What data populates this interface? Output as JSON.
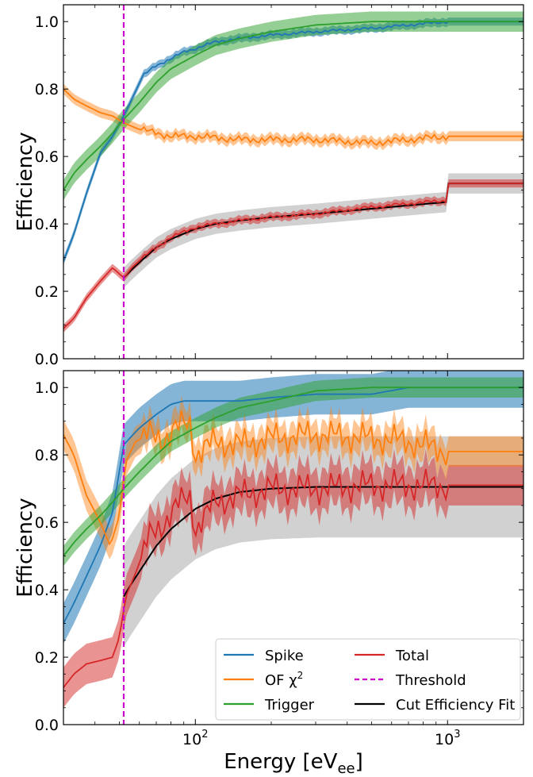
{
  "figure": {
    "xlabel": "Energy [eV",
    "xlabel_sub": "ee",
    "xlabel_close": "]"
  },
  "chart_data": [
    {
      "type": "line",
      "panel": "top",
      "xscale": "log",
      "xlim": [
        30,
        2000
      ],
      "ylim": [
        0,
        1.05
      ],
      "ylabel": "Efficiency",
      "ytick_labels": [
        "0.0",
        "0.2",
        "0.4",
        "0.6",
        "0.8",
        "1.0"
      ],
      "xtick_labels": [],
      "grid": false,
      "threshold_x": 52,
      "colors": {
        "Spike": "#1f77b4",
        "OF χ²": "#ff7f0e",
        "Trigger": "#2ca02c",
        "Total": "#d62728",
        "Threshold": "#cc00cc",
        "Cut Efficiency Fit": "#000000"
      },
      "series": [
        {
          "name": "Spike",
          "color": "#1f77b4",
          "band": 0.012,
          "noise": 0.005,
          "x": [
            30,
            33,
            37,
            42,
            47,
            52,
            56,
            62,
            70,
            80,
            90,
            100,
            120,
            150,
            200,
            300,
            500,
            700,
            1000,
            2000
          ],
          "y": [
            0.29,
            0.37,
            0.49,
            0.61,
            0.66,
            0.72,
            0.77,
            0.84,
            0.87,
            0.89,
            0.91,
            0.92,
            0.94,
            0.95,
            0.96,
            0.97,
            0.98,
            0.99,
            1.0,
            1.0
          ]
        },
        {
          "name": "OF χ²",
          "color": "#ff7f0e",
          "band": 0.015,
          "noise": 0.012,
          "x": [
            30,
            33,
            37,
            42,
            47,
            52,
            60,
            70,
            80,
            100,
            150,
            200,
            300,
            500,
            700,
            1000,
            2000
          ],
          "y": [
            0.8,
            0.77,
            0.75,
            0.73,
            0.72,
            0.7,
            0.68,
            0.67,
            0.66,
            0.66,
            0.65,
            0.65,
            0.65,
            0.64,
            0.65,
            0.66,
            0.66
          ]
        },
        {
          "name": "Trigger",
          "color": "#2ca02c",
          "band": 0.03,
          "noise": 0,
          "x": [
            30,
            33,
            37,
            42,
            47,
            52,
            60,
            70,
            80,
            100,
            120,
            150,
            200,
            300,
            500,
            1000,
            2000
          ],
          "y": [
            0.5,
            0.55,
            0.59,
            0.63,
            0.67,
            0.71,
            0.76,
            0.82,
            0.86,
            0.9,
            0.93,
            0.95,
            0.97,
            0.99,
            1.0,
            1.0,
            1.0
          ]
        },
        {
          "name": "Total",
          "color": "#d62728",
          "band": 0.012,
          "noise": 0.006,
          "x": [
            30,
            33,
            37,
            42,
            47,
            52,
            56,
            62,
            70,
            80,
            100,
            120,
            150,
            200,
            300,
            500,
            700,
            999,
            1001,
            2000
          ],
          "y": [
            0.09,
            0.12,
            0.18,
            0.23,
            0.27,
            0.24,
            0.27,
            0.3,
            0.33,
            0.36,
            0.39,
            0.4,
            0.41,
            0.42,
            0.43,
            0.45,
            0.46,
            0.47,
            0.52,
            0.52
          ]
        },
        {
          "name": "Cut Efficiency Fit",
          "color": "#000000",
          "band": 0.03,
          "noise": 0,
          "x": [
            52,
            56,
            62,
            70,
            80,
            100,
            120,
            150,
            200,
            300,
            500,
            700,
            999,
            1001,
            2000
          ],
          "y": [
            0.24,
            0.265,
            0.295,
            0.33,
            0.355,
            0.385,
            0.4,
            0.41,
            0.42,
            0.43,
            0.445,
            0.455,
            0.465,
            0.52,
            0.52
          ]
        }
      ]
    },
    {
      "type": "line",
      "panel": "bottom",
      "xscale": "log",
      "xlim": [
        30,
        2000
      ],
      "ylim": [
        0,
        1.05
      ],
      "ylabel": "Efficiency",
      "ytick_labels": [
        "0.0",
        "0.2",
        "0.4",
        "0.6",
        "0.8",
        "1.0"
      ],
      "xtick_labels": [
        "10",
        "10"
      ],
      "xtick_label_exps": [
        "2",
        "3"
      ],
      "grid": false,
      "threshold_x": 52,
      "legend": {
        "placement": "lower-right",
        "entries": [
          {
            "label": "Spike",
            "color": "#1f77b4",
            "style": "solid"
          },
          {
            "label": "OF χ",
            "sup": "2",
            "color": "#ff7f0e",
            "style": "solid"
          },
          {
            "label": "Trigger",
            "color": "#2ca02c",
            "style": "solid"
          },
          {
            "label": "Total",
            "color": "#d62728",
            "style": "solid"
          },
          {
            "label": "Threshold",
            "color": "#cc00cc",
            "style": "dashed"
          },
          {
            "label": "Cut Efficiency Fit",
            "color": "#000000",
            "style": "solid"
          }
        ]
      },
      "series": [
        {
          "name": "Spike",
          "color": "#1f77b4",
          "band": 0.06,
          "noise": 0,
          "x": [
            30,
            33,
            37,
            42,
            47,
            52,
            55,
            60,
            70,
            80,
            90,
            100,
            120,
            150,
            200,
            300,
            500,
            700,
            1000,
            2000
          ],
          "y": [
            0.3,
            0.36,
            0.44,
            0.53,
            0.63,
            0.83,
            0.85,
            0.88,
            0.92,
            0.95,
            0.96,
            0.96,
            0.96,
            0.96,
            0.97,
            0.98,
            0.98,
            1.0,
            1.0,
            1.0
          ]
        },
        {
          "name": "OF χ²",
          "color": "#ff7f0e",
          "band": 0.045,
          "noise": 0.05,
          "x": [
            30,
            33,
            37,
            42,
            46,
            50,
            53,
            58,
            65,
            75,
            85,
            95,
            100,
            120,
            150,
            200,
            300,
            500,
            700,
            1000,
            2000
          ],
          "y": [
            0.86,
            0.8,
            0.68,
            0.6,
            0.53,
            0.62,
            0.78,
            0.84,
            0.86,
            0.85,
            0.88,
            0.9,
            0.8,
            0.84,
            0.83,
            0.85,
            0.86,
            0.85,
            0.84,
            0.81,
            0.81
          ]
        },
        {
          "name": "Trigger",
          "color": "#2ca02c",
          "band": 0.03,
          "noise": 0,
          "x": [
            30,
            33,
            37,
            42,
            47,
            52,
            60,
            70,
            80,
            100,
            120,
            150,
            200,
            300,
            500,
            1000,
            2000
          ],
          "y": [
            0.5,
            0.54,
            0.58,
            0.62,
            0.66,
            0.7,
            0.75,
            0.8,
            0.84,
            0.88,
            0.91,
            0.94,
            0.96,
            0.99,
            1.0,
            1.0,
            1.0
          ]
        },
        {
          "name": "Total",
          "color": "#d62728",
          "band": 0.06,
          "noise": 0.05,
          "x": [
            30,
            33,
            37,
            42,
            47,
            50,
            53,
            58,
            65,
            75,
            85,
            95,
            100,
            120,
            150,
            200,
            300,
            500,
            700,
            1000,
            2000
          ],
          "y": [
            0.11,
            0.15,
            0.18,
            0.19,
            0.2,
            0.26,
            0.38,
            0.45,
            0.55,
            0.6,
            0.65,
            0.68,
            0.58,
            0.66,
            0.68,
            0.7,
            0.7,
            0.71,
            0.71,
            0.71,
            0.71
          ]
        },
        {
          "name": "Cut Efficiency Fit",
          "color": "#000000",
          "band": 0.15,
          "noise": 0,
          "x": [
            52,
            56,
            62,
            70,
            80,
            100,
            120,
            150,
            200,
            300,
            500,
            1000,
            2000
          ],
          "y": [
            0.38,
            0.42,
            0.47,
            0.53,
            0.58,
            0.64,
            0.67,
            0.69,
            0.7,
            0.705,
            0.705,
            0.705,
            0.705
          ]
        }
      ]
    }
  ]
}
